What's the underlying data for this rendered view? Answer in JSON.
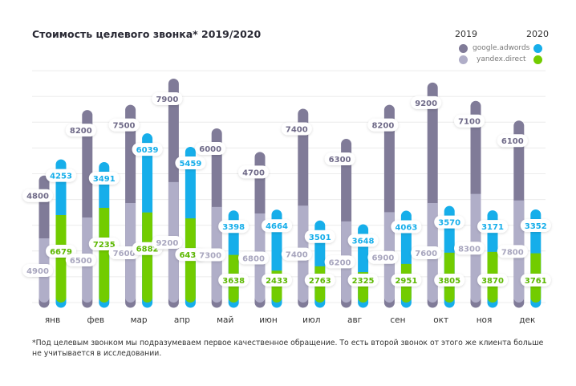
{
  "chart_data": {
    "type": "bar",
    "stacked": true,
    "title": "Стоимость целевого звонка*  2019/2020",
    "categories": [
      "янв",
      "фев",
      "мар",
      "апр",
      "май",
      "июн",
      "июл",
      "авг",
      "сен",
      "окт",
      "ноя",
      "дек"
    ],
    "groups": [
      "2019",
      "2020"
    ],
    "series": [
      {
        "name": "yandex.direct",
        "group": "2019",
        "color": "#b0aec8",
        "values": [
          4900,
          6500,
          7600,
          9200,
          7300,
          6800,
          7400,
          6200,
          6900,
          7600,
          8300,
          7800
        ]
      },
      {
        "name": "google.adwords",
        "group": "2019",
        "color": "#807b98",
        "values": [
          4800,
          8200,
          7500,
          7900,
          6000,
          4700,
          7400,
          6300,
          8200,
          9200,
          7100,
          6100
        ]
      },
      {
        "name": "yandex.direct",
        "group": "2020",
        "color": "#72cc00",
        "values": [
          6679,
          7235,
          6882,
          6431,
          3638,
          2433,
          2763,
          2325,
          2951,
          3805,
          3870,
          3761
        ]
      },
      {
        "name": "google.adwords",
        "group": "2020",
        "color": "#16aeea",
        "values": [
          4253,
          3491,
          6039,
          5459,
          3398,
          4664,
          3501,
          3648,
          4063,
          3570,
          3171,
          3352
        ]
      }
    ],
    "grid": true,
    "legend_placement": "top-right",
    "footnote": "*Под целевым звонком мы подразумеваем первое качественное обращение. То есть второй звонок от этого же клиента больше не учитывается в исследовании."
  },
  "legend": {
    "year_2019": "2019",
    "year_2020": "2020",
    "google": "google.adwords",
    "yandex": "yandex.direct"
  }
}
